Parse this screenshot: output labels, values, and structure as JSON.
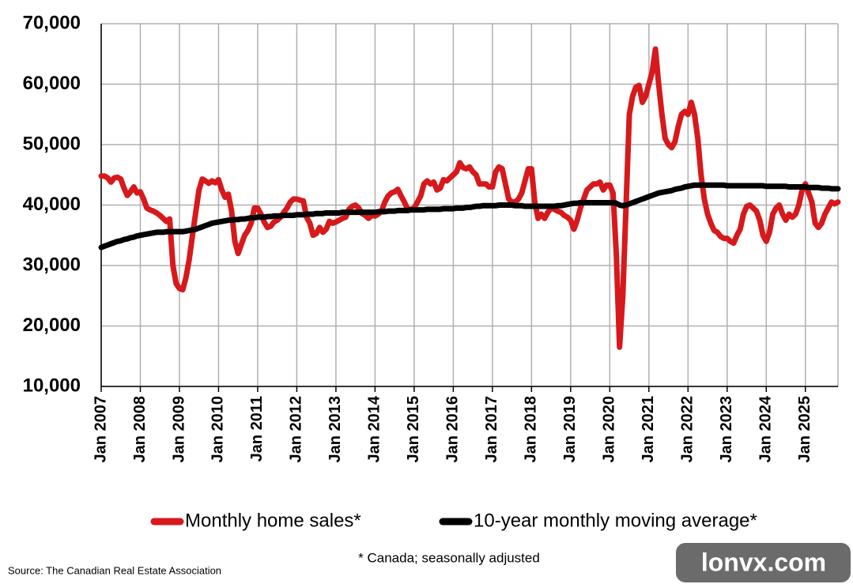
{
  "chart_data": {
    "type": "line",
    "categories": [
      "Jan 2007",
      null,
      null,
      null,
      null,
      null,
      null,
      null,
      null,
      null,
      null,
      null,
      "Jan 2008",
      null,
      null,
      null,
      null,
      null,
      null,
      null,
      null,
      null,
      null,
      null,
      "Jan 2009",
      null,
      null,
      null,
      null,
      null,
      null,
      null,
      null,
      null,
      null,
      null,
      "Jan 2010",
      null,
      null,
      null,
      null,
      null,
      null,
      null,
      null,
      null,
      null,
      null,
      "Jan 2011",
      null,
      null,
      null,
      null,
      null,
      null,
      null,
      null,
      null,
      null,
      null,
      "Jan 2012",
      null,
      null,
      null,
      null,
      null,
      null,
      null,
      null,
      null,
      null,
      null,
      "Jan 2013",
      null,
      null,
      null,
      null,
      null,
      null,
      null,
      null,
      null,
      null,
      null,
      "Jan 2014",
      null,
      null,
      null,
      null,
      null,
      null,
      null,
      null,
      null,
      null,
      null,
      "Jan 2015",
      null,
      null,
      null,
      null,
      null,
      null,
      null,
      null,
      null,
      null,
      null,
      "Jan 2016",
      null,
      null,
      null,
      null,
      null,
      null,
      null,
      null,
      null,
      null,
      null,
      "Jan 2017",
      null,
      null,
      null,
      null,
      null,
      null,
      null,
      null,
      null,
      null,
      null,
      "Jan 2018",
      null,
      null,
      null,
      null,
      null,
      null,
      null,
      null,
      null,
      null,
      null,
      "Jan 2019",
      null,
      null,
      null,
      null,
      null,
      null,
      null,
      null,
      null,
      null,
      null,
      "Jan 2020",
      null,
      null,
      null,
      null,
      null,
      null,
      null,
      null,
      null,
      null,
      null,
      "Jan 2021",
      null,
      null,
      null,
      null,
      null,
      null,
      null,
      null,
      null,
      null,
      null,
      "Jan 2022",
      null,
      null,
      null,
      null,
      null,
      null,
      null,
      null,
      null,
      null,
      null,
      "Jan 2023",
      null,
      null,
      null,
      null,
      null,
      null,
      null,
      null,
      null,
      null,
      null,
      "Jan 2024",
      null,
      null,
      null,
      null,
      null,
      null,
      null,
      null,
      null,
      null,
      null,
      "Jan 2025",
      null,
      null,
      null,
      null,
      null,
      null,
      null,
      null,
      null,
      null
    ],
    "series": [
      {
        "name": "Monthly home sales*",
        "color": "#d7191c",
        "values": [
          44800,
          44800,
          44500,
          43800,
          44500,
          44600,
          44300,
          42800,
          41600,
          42200,
          43000,
          42000,
          42200,
          41000,
          39500,
          39200,
          39000,
          38700,
          38300,
          37800,
          37300,
          37700,
          30000,
          27000,
          26200,
          26000,
          28000,
          31000,
          35000,
          38800,
          42500,
          44300,
          44000,
          43600,
          44000,
          43700,
          44200,
          42500,
          41300,
          41800,
          39000,
          34000,
          32000,
          33500,
          35000,
          35800,
          37000,
          39500,
          39500,
          38500,
          37200,
          36300,
          36500,
          37200,
          37500,
          38000,
          38800,
          39500,
          40500,
          41000,
          41000,
          40800,
          40700,
          38000,
          37000,
          35000,
          35300,
          36300,
          35500,
          36000,
          37300,
          37000,
          37200,
          37500,
          37800,
          38000,
          39300,
          39800,
          40000,
          39500,
          38600,
          38300,
          37800,
          38300,
          38200,
          38500,
          39000,
          40500,
          41500,
          42000,
          42200,
          42600,
          41500,
          40500,
          39300,
          39300,
          39500,
          40500,
          41500,
          43500,
          44000,
          43500,
          43800,
          42500,
          42800,
          44200,
          44000,
          44500,
          45000,
          45500,
          47000,
          46200,
          46000,
          46300,
          45500,
          45000,
          43500,
          43500,
          43500,
          43000,
          43000,
          45500,
          46300,
          46000,
          43500,
          41000,
          40500,
          40500,
          41000,
          42000,
          44000,
          46000,
          46000,
          40500,
          37800,
          38500,
          37800,
          38800,
          39500,
          39300,
          39000,
          38800,
          38300,
          38000,
          37500,
          36000,
          37500,
          39500,
          41000,
          42500,
          43000,
          43500,
          43500,
          43800,
          42500,
          43300,
          43300,
          42000,
          32000,
          16500,
          25000,
          40000,
          55000,
          58000,
          59500,
          59800,
          57000,
          58000,
          60000,
          62000,
          65800,
          60000,
          55000,
          51000,
          50000,
          49500,
          50500,
          53000,
          55000,
          55500,
          55000,
          57000,
          55000,
          51000,
          45000,
          41000,
          38500,
          37000,
          35800,
          35500,
          34800,
          34500,
          34500,
          34000,
          33700,
          35000,
          36000,
          38500,
          39800,
          40000,
          39500,
          39000,
          37500,
          35000,
          34000,
          35500,
          38500,
          39500,
          40000,
          38500,
          37500,
          38500,
          38000,
          38500,
          40000,
          42500,
          43500,
          42000,
          40500,
          37000,
          36300,
          37000,
          38500,
          39500,
          40500,
          40200,
          40500
        ]
      },
      {
        "name": "10-year monthly moving average*",
        "color": "#000000",
        "values": [
          33000,
          33200,
          33400,
          33600,
          33800,
          34000,
          34100,
          34300,
          34400,
          34600,
          34700,
          34900,
          35000,
          35100,
          35200,
          35300,
          35400,
          35500,
          35500,
          35500,
          35600,
          35600,
          35600,
          35600,
          35600,
          35600,
          35700,
          35800,
          35900,
          36000,
          36200,
          36400,
          36600,
          36800,
          37000,
          37100,
          37200,
          37300,
          37400,
          37500,
          37500,
          37600,
          37600,
          37700,
          37700,
          37800,
          37900,
          37900,
          38000,
          38000,
          38000,
          38100,
          38100,
          38200,
          38200,
          38200,
          38300,
          38300,
          38300,
          38300,
          38400,
          38400,
          38400,
          38500,
          38500,
          38500,
          38600,
          38600,
          38600,
          38700,
          38700,
          38700,
          38700,
          38700,
          38800,
          38800,
          38800,
          38800,
          38800,
          38800,
          38800,
          38800,
          38800,
          38800,
          38800,
          38900,
          38900,
          38900,
          39000,
          39000,
          39000,
          39100,
          39100,
          39100,
          39100,
          39200,
          39200,
          39200,
          39200,
          39200,
          39300,
          39300,
          39300,
          39300,
          39300,
          39400,
          39400,
          39400,
          39400,
          39500,
          39500,
          39500,
          39600,
          39600,
          39700,
          39800,
          39800,
          39900,
          39900,
          39900,
          39900,
          39900,
          40000,
          40000,
          40000,
          40000,
          40000,
          39900,
          39900,
          39900,
          39800,
          39800,
          39800,
          39800,
          39800,
          39800,
          39800,
          39800,
          39800,
          39800,
          39900,
          39900,
          40000,
          40100,
          40200,
          40300,
          40300,
          40400,
          40400,
          40400,
          40400,
          40400,
          40400,
          40400,
          40400,
          40400,
          40400,
          40400,
          40300,
          40000,
          39900,
          40000,
          40200,
          40400,
          40600,
          40800,
          41000,
          41200,
          41400,
          41600,
          41800,
          42000,
          42100,
          42200,
          42300,
          42400,
          42600,
          42700,
          42800,
          43000,
          43100,
          43200,
          43300,
          43300,
          43300,
          43300,
          43300,
          43300,
          43300,
          43300,
          43300,
          43300,
          43200,
          43200,
          43200,
          43200,
          43200,
          43200,
          43200,
          43200,
          43200,
          43200,
          43200,
          43200,
          43100,
          43100,
          43100,
          43100,
          43100,
          43100,
          43100,
          43000,
          43000,
          43000,
          43000,
          43000,
          43000,
          42900,
          42900,
          42900,
          42900,
          42800,
          42800,
          42800,
          42700,
          42700,
          42700
        ]
      }
    ],
    "ylim": [
      10000,
      70000
    ],
    "yticks": [
      {
        "value": 10000,
        "label": "10,000"
      },
      {
        "value": 20000,
        "label": "20,000"
      },
      {
        "value": 30000,
        "label": "30,000"
      },
      {
        "value": 40000,
        "label": "40,000"
      },
      {
        "value": 50000,
        "label": "50,000"
      },
      {
        "value": 60000,
        "label": "60,000"
      },
      {
        "value": 70000,
        "label": "70,000"
      }
    ],
    "grid": true,
    "legend": "bottom",
    "note": "* Canada; seasonally adjusted",
    "source": "Source: The Canadian Real Estate Association",
    "watermark": "lonvx.com"
  }
}
